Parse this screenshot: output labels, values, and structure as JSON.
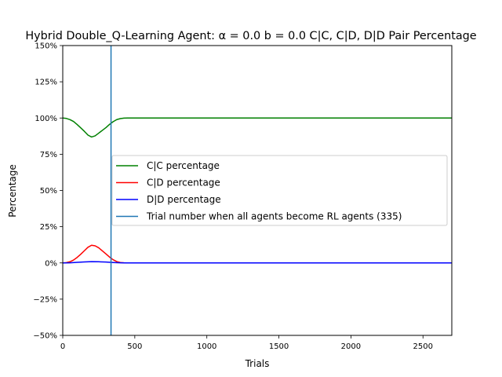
{
  "chart_data": {
    "type": "line",
    "title": "Hybrid Double_Q-Learning Agent: α = 0.0 b = 0.0  C|C, C|D, D|D Pair Percentage",
    "xlabel": "Trials",
    "ylabel": "Percentage",
    "xlim": [
      0,
      2700
    ],
    "ylim": [
      -50,
      150
    ],
    "x_ticks": [
      0,
      500,
      1000,
      1500,
      2000,
      2500
    ],
    "x_tick_labels": [
      "0",
      "500",
      "1000",
      "1500",
      "2000",
      "2500"
    ],
    "y_ticks": [
      -50,
      -25,
      0,
      25,
      50,
      75,
      100,
      125,
      150
    ],
    "y_tick_labels": [
      "−50%",
      "−25%",
      "0%",
      "25%",
      "50%",
      "75%",
      "100%",
      "125%",
      "150%"
    ],
    "grid": false,
    "legend_position": "center-right",
    "series": [
      {
        "name": "C|C percentage",
        "color": "#008000",
        "x": [
          0,
          25,
          50,
          75,
          100,
          125,
          150,
          175,
          200,
          225,
          250,
          275,
          300,
          325,
          350,
          375,
          400,
          425,
          450,
          500,
          600,
          800,
          1200,
          1600,
          2000,
          2400,
          2700
        ],
        "y": [
          100,
          99.7,
          98.9,
          97.6,
          95.5,
          93.2,
          90.8,
          88.2,
          86.9,
          87.7,
          89.6,
          91.5,
          93.4,
          95.6,
          97.5,
          98.9,
          99.6,
          99.9,
          100,
          100,
          100,
          100,
          100,
          100,
          100,
          100,
          100
        ]
      },
      {
        "name": "C|D percentage",
        "color": "#ff0000",
        "x": [
          0,
          25,
          50,
          75,
          100,
          125,
          150,
          175,
          200,
          225,
          250,
          275,
          300,
          325,
          350,
          375,
          400,
          425,
          450,
          500,
          600,
          800,
          1200,
          1600,
          2000,
          2400,
          2700
        ],
        "y": [
          0,
          0.2,
          0.8,
          2,
          3.8,
          6,
          8.4,
          10.8,
          12.2,
          11.8,
          10.4,
          8.3,
          6.2,
          4,
          2.2,
          0.9,
          0.3,
          0.1,
          0,
          0,
          0,
          0,
          0,
          0,
          0,
          0,
          0
        ]
      },
      {
        "name": "D|D percentage",
        "color": "#0000ff",
        "x": [
          0,
          50,
          100,
          150,
          200,
          250,
          300,
          350,
          400,
          450,
          500,
          800,
          1200,
          1600,
          2000,
          2400,
          2700
        ],
        "y": [
          0,
          0.1,
          0.4,
          0.7,
          0.9,
          0.8,
          0.6,
          0.3,
          0.1,
          0,
          0,
          0,
          0,
          0,
          0,
          0,
          0
        ]
      }
    ],
    "vline": {
      "name": "Trial number when all agents become RL agents (335)",
      "x": 335,
      "color": "#1f77b4"
    }
  }
}
